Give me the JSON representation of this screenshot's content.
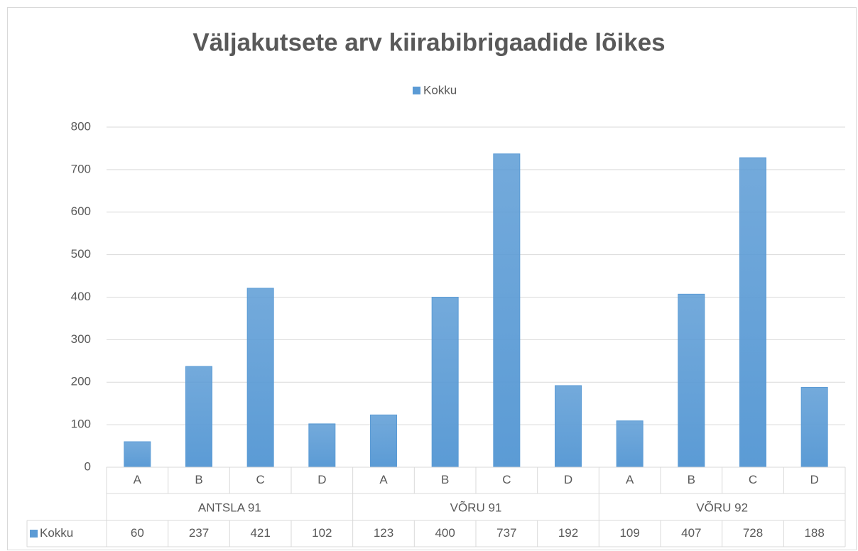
{
  "chart_data": {
    "type": "bar",
    "title": "Väljakutsete arv kiirabibrigaadide lõikes",
    "categories": [
      "A",
      "B",
      "C",
      "D",
      "A",
      "B",
      "C",
      "D",
      "A",
      "B",
      "C",
      "D"
    ],
    "groups": [
      "ANTSLA 91",
      "VÕRU 91",
      "VÕRU 92"
    ],
    "series": [
      {
        "name": "Kokku",
        "color": "#5b9bd5",
        "values": [
          60,
          237,
          421,
          102,
          123,
          400,
          737,
          192,
          109,
          407,
          728,
          188
        ]
      }
    ],
    "ylim": [
      0,
      800
    ],
    "yticks": [
      0,
      100,
      200,
      300,
      400,
      500,
      600,
      700,
      800
    ],
    "grid": true,
    "legend": "top",
    "data_table": true
  }
}
